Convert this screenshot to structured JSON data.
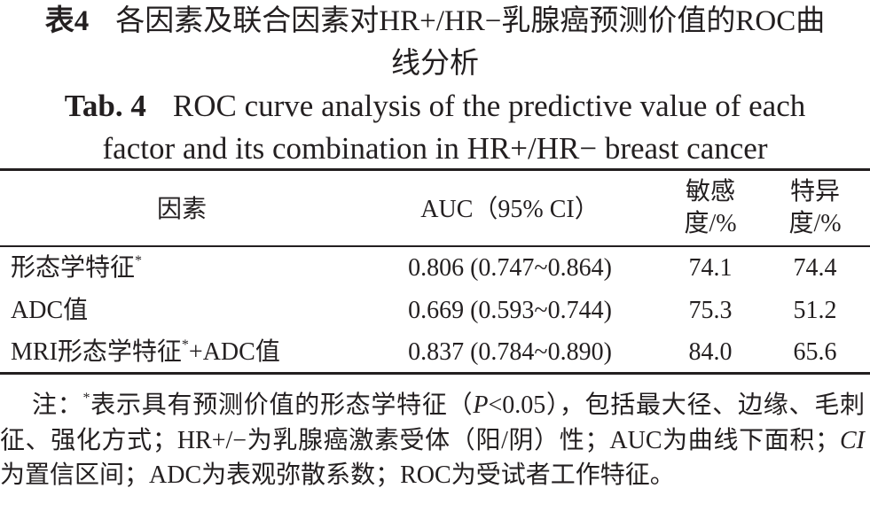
{
  "title": {
    "label_zh": "表4",
    "text_zh": "各因素及联合因素对HR+/HR−乳腺癌预测价值的ROC曲线分析",
    "label_en": "Tab. 4",
    "text_en": "ROC curve analysis of the predictive value of each factor and its combination in HR+/HR− breast cancer"
  },
  "table": {
    "headers": [
      "因素",
      "AUC（95% CI）",
      "敏感度/%",
      "特异度/%"
    ],
    "rows": [
      [
        [
          "形态学特征",
          "*"
        ],
        "0.806 (0.747~0.864)",
        "74.1",
        "74.4"
      ],
      [
        [
          "ADC值"
        ],
        "0.669 (0.593~0.744)",
        "75.3",
        "51.2"
      ],
      [
        [
          "MRI形态学特征",
          "*",
          "+ADC值"
        ],
        "0.837 (0.784~0.890)",
        "84.0",
        "65.6"
      ]
    ]
  },
  "note": [
    "注：",
    "*",
    "表示具有预测价值的形态学特征（",
    "P",
    "<0.05），包括最大径、边缘、毛刺征、强化方式；HR+/−为乳腺癌激素受体（阳/阴）性；AUC为曲线下面积；",
    "CI",
    "为置信区间；ADC为表观弥散系数；ROC为受试者工作特征。"
  ]
}
